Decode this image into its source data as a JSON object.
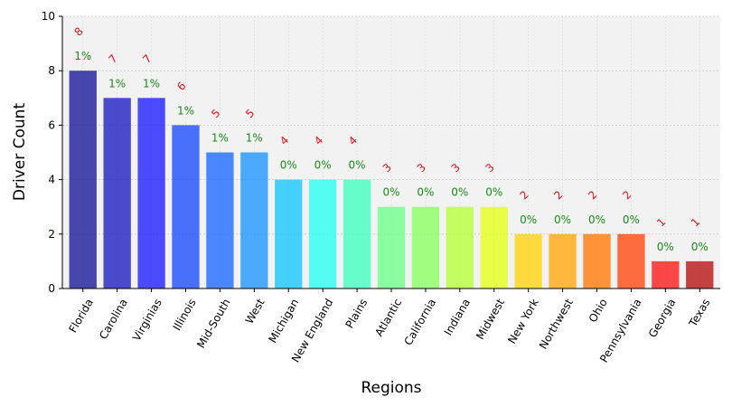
{
  "chart_data": {
    "type": "bar",
    "title": "",
    "xlabel": "Regions",
    "ylabel": "Driver Count",
    "ylim": [
      0,
      10
    ],
    "yticks": [
      0,
      2,
      4,
      6,
      8,
      10
    ],
    "grid": true,
    "categories": [
      "Florida",
      "Carolina",
      "Virginias",
      "Illinois",
      "Mid-South",
      "West",
      "Michigan",
      "New England",
      "Plains",
      "Atlantic",
      "California",
      "Indiana",
      "Midwest",
      "New York",
      "Northwest",
      "Ohio",
      "Pennsylvania",
      "Georgia",
      "Texas"
    ],
    "values": [
      8,
      7,
      7,
      6,
      5,
      5,
      4,
      4,
      4,
      3,
      3,
      3,
      3,
      2,
      2,
      2,
      2,
      1,
      1
    ],
    "percent_labels": [
      "1%",
      "1%",
      "1%",
      "1%",
      "1%",
      "1%",
      "0%",
      "0%",
      "0%",
      "0%",
      "0%",
      "0%",
      "0%",
      "0%",
      "0%",
      "0%",
      "0%",
      "0%",
      "0%"
    ],
    "colors": [
      "#1a1a9a",
      "#1f1fc2",
      "#2020ff",
      "#1f4dff",
      "#1f6aff",
      "#2196ff",
      "#18c5ff",
      "#2afff0",
      "#44ffc0",
      "#6eff8a",
      "#8cff62",
      "#b8ff3a",
      "#e4ff1a",
      "#ffd510",
      "#ffa80c",
      "#ff7a0a",
      "#ff4a12",
      "#ff1a1a",
      "#b81414"
    ],
    "bar_alpha": 0.8
  }
}
